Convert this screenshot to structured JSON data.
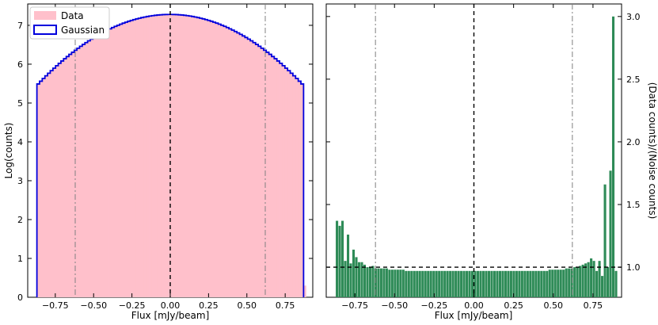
{
  "chart_data": [
    {
      "type": "bar",
      "panel": "left",
      "xlabel": "Flux [mJy/beam]",
      "ylabel": "Log(counts)",
      "xlim": [
        -0.93,
        0.93
      ],
      "ylim": [
        0,
        7.55
      ],
      "xticks": [
        -0.75,
        -0.5,
        -0.25,
        0.0,
        0.25,
        0.5,
        0.75
      ],
      "xtick_labels": [
        "−0.75",
        "−0.50",
        "−0.25",
        "0.00",
        "0.25",
        "0.50",
        "0.75"
      ],
      "yticks": [
        0,
        1,
        2,
        3,
        4,
        5,
        6,
        7
      ],
      "ytick_labels": [
        "0",
        "1",
        "2",
        "3",
        "4",
        "5",
        "6",
        "7"
      ],
      "bins": {
        "start": -0.87,
        "end": 0.87,
        "count": 100
      },
      "series": [
        {
          "name": "Data",
          "style": "filled-histogram",
          "color": "#ffc0cb",
          "model": "gaussian-log-counts",
          "peak": 7.28,
          "sigma": 0.3
        },
        {
          "name": "Gaussian",
          "style": "step-outline",
          "color": "#0000dd",
          "model": "gaussian-log-counts",
          "peak": 7.28,
          "sigma": 0.3
        }
      ],
      "vlines": [
        {
          "x": 0.0,
          "style": "dashed",
          "color": "#000000"
        },
        {
          "x": -0.62,
          "style": "dashdot",
          "color": "#808080"
        },
        {
          "x": 0.62,
          "style": "dashdot",
          "color": "#808080"
        }
      ],
      "legend": {
        "placement": "top-left",
        "entries": [
          "Data",
          "Gaussian"
        ]
      },
      "grid": false
    },
    {
      "type": "bar",
      "panel": "right",
      "xlabel": "Flux [mJy/beam]",
      "ylabel": "(Data counts)/(Noise counts)",
      "xlim": [
        -0.93,
        0.93
      ],
      "ylim": [
        0.76,
        3.1
      ],
      "yaxis_side": "right",
      "xticks": [
        -0.75,
        -0.5,
        -0.25,
        0.0,
        0.25,
        0.5,
        0.75
      ],
      "xtick_labels": [
        "−0.75",
        "−0.50",
        "−0.25",
        "0.00",
        "0.25",
        "0.50",
        "0.75"
      ],
      "yticks": [
        1.0,
        1.5,
        2.0,
        2.5,
        3.0
      ],
      "ytick_labels": [
        "1.0",
        "1.5",
        "2.0",
        "2.5",
        "3.0"
      ],
      "bar_color": "#2e8b57",
      "bins": {
        "start": -0.87,
        "end": 0.87,
        "count": 100
      },
      "values": [
        1.37,
        1.33,
        1.37,
        1.05,
        1.26,
        1.03,
        1.14,
        1.08,
        1.04,
        1.04,
        1.02,
        1.0,
        1.0,
        1.01,
        0.99,
        0.99,
        0.99,
        0.99,
        0.99,
        0.98,
        0.98,
        0.98,
        0.98,
        0.98,
        0.98,
        0.97,
        0.97,
        0.97,
        0.97,
        0.97,
        0.97,
        0.97,
        0.97,
        0.97,
        0.97,
        0.97,
        0.97,
        0.97,
        0.97,
        0.97,
        0.97,
        0.97,
        0.97,
        0.97,
        0.97,
        0.97,
        0.97,
        0.97,
        0.97,
        0.97,
        0.97,
        0.97,
        0.97,
        0.97,
        0.97,
        0.97,
        0.97,
        0.97,
        0.97,
        0.97,
        0.97,
        0.97,
        0.97,
        0.97,
        0.97,
        0.97,
        0.97,
        0.97,
        0.97,
        0.97,
        0.97,
        0.97,
        0.97,
        0.97,
        0.97,
        0.97,
        0.97,
        0.98,
        0.98,
        0.98,
        0.98,
        0.98,
        0.98,
        0.99,
        0.99,
        0.99,
        1.0,
        1.0,
        1.01,
        1.02,
        1.03,
        1.04,
        1.07,
        1.05,
        0.97,
        1.05,
        0.93,
        1.66,
        1.0,
        1.77,
        3.0,
        0.97
      ],
      "hlines": [
        {
          "y": 1.0,
          "style": "dashed",
          "color": "#000000"
        }
      ],
      "vlines": [
        {
          "x": 0.0,
          "style": "dashed",
          "color": "#000000"
        },
        {
          "x": -0.62,
          "style": "dashdot",
          "color": "#808080"
        },
        {
          "x": 0.62,
          "style": "dashdot",
          "color": "#808080"
        }
      ],
      "grid": false
    }
  ]
}
